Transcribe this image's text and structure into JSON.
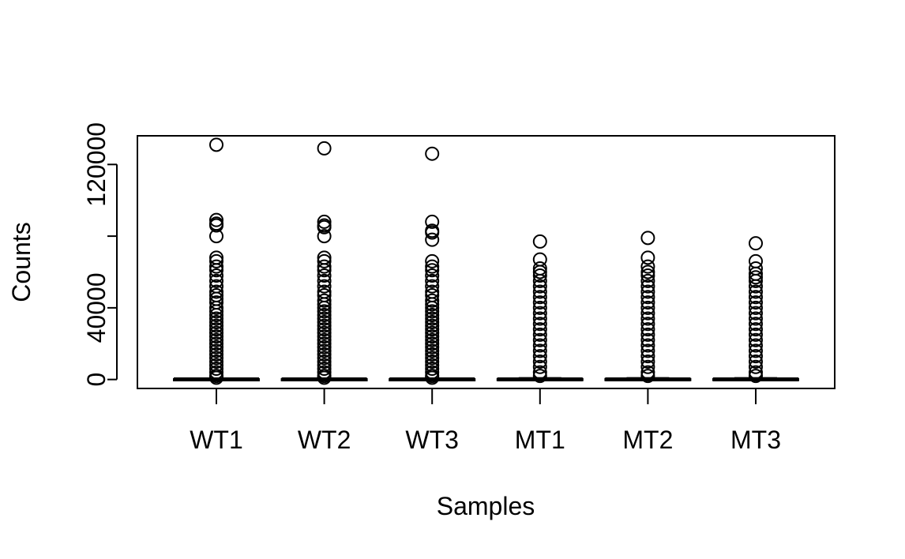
{
  "chart_data": {
    "type": "boxplot",
    "title": "",
    "xlabel": "Samples",
    "ylabel": "Counts",
    "ylim": [
      -5000,
      136000
    ],
    "y_ticks": [
      0,
      40000,
      80000,
      120000
    ],
    "y_tick_labels": [
      "0",
      "40000",
      "",
      "120000"
    ],
    "categories": [
      "WT1",
      "WT2",
      "WT3",
      "MT1",
      "MT2",
      "MT3"
    ],
    "boxes": [
      {
        "name": "WT1",
        "min": 0,
        "q1": 0,
        "median": 50,
        "q3": 300,
        "max": 700,
        "outliers": [
          131000,
          89000,
          87000,
          86000,
          80000,
          68000,
          66000,
          63000,
          61000,
          58000,
          55000,
          52000,
          49000,
          47000,
          45000,
          43000,
          40000,
          38000,
          36000,
          34000,
          32000,
          30000,
          28000,
          26000,
          24000,
          22000,
          20000,
          18000,
          16000,
          14000,
          12000,
          10000,
          8000,
          6000,
          4000,
          2000,
          1000
        ]
      },
      {
        "name": "WT2",
        "min": 0,
        "q1": 0,
        "median": 50,
        "q3": 300,
        "max": 700,
        "outliers": [
          129000,
          88000,
          86000,
          85000,
          80000,
          68000,
          66000,
          63000,
          61000,
          58000,
          55000,
          52000,
          49000,
          47000,
          44000,
          42000,
          40000,
          38000,
          36000,
          34000,
          32000,
          30000,
          28000,
          26000,
          24000,
          22000,
          20000,
          18000,
          16000,
          14000,
          12000,
          10000,
          8000,
          6000,
          4000,
          2000,
          1000
        ]
      },
      {
        "name": "WT3",
        "min": 0,
        "q1": 0,
        "median": 50,
        "q3": 300,
        "max": 700,
        "outliers": [
          126000,
          88000,
          83000,
          82000,
          78000,
          66000,
          63000,
          61000,
          58000,
          55000,
          52000,
          49000,
          47000,
          44000,
          42000,
          40000,
          38000,
          36000,
          34000,
          32000,
          30000,
          28000,
          26000,
          24000,
          22000,
          20000,
          18000,
          16000,
          14000,
          12000,
          10000,
          8000,
          6000,
          4000,
          2000,
          1000
        ]
      },
      {
        "name": "MT1",
        "min": 0,
        "q1": 0,
        "median": 50,
        "q3": 400,
        "max": 900,
        "outliers": [
          77000,
          67000,
          62000,
          60000,
          58000,
          55000,
          52000,
          49000,
          46000,
          43000,
          40000,
          37000,
          34000,
          31000,
          28000,
          25000,
          22000,
          19000,
          16000,
          13000,
          10000,
          7000,
          4000,
          2000
        ]
      },
      {
        "name": "MT2",
        "min": 0,
        "q1": 0,
        "median": 50,
        "q3": 400,
        "max": 900,
        "outliers": [
          79000,
          68000,
          63000,
          60000,
          58000,
          55000,
          52000,
          49000,
          46000,
          43000,
          40000,
          37000,
          34000,
          31000,
          28000,
          25000,
          22000,
          19000,
          16000,
          13000,
          10000,
          7000,
          4000,
          2000
        ]
      },
      {
        "name": "MT3",
        "min": 0,
        "q1": 0,
        "median": 50,
        "q3": 400,
        "max": 900,
        "outliers": [
          76000,
          66000,
          62000,
          59000,
          57000,
          55000,
          52000,
          49000,
          46000,
          43000,
          40000,
          37000,
          34000,
          31000,
          28000,
          25000,
          22000,
          19000,
          16000,
          13000,
          10000,
          7000,
          4000,
          2000
        ]
      }
    ],
    "grid": false,
    "legend": "none"
  }
}
